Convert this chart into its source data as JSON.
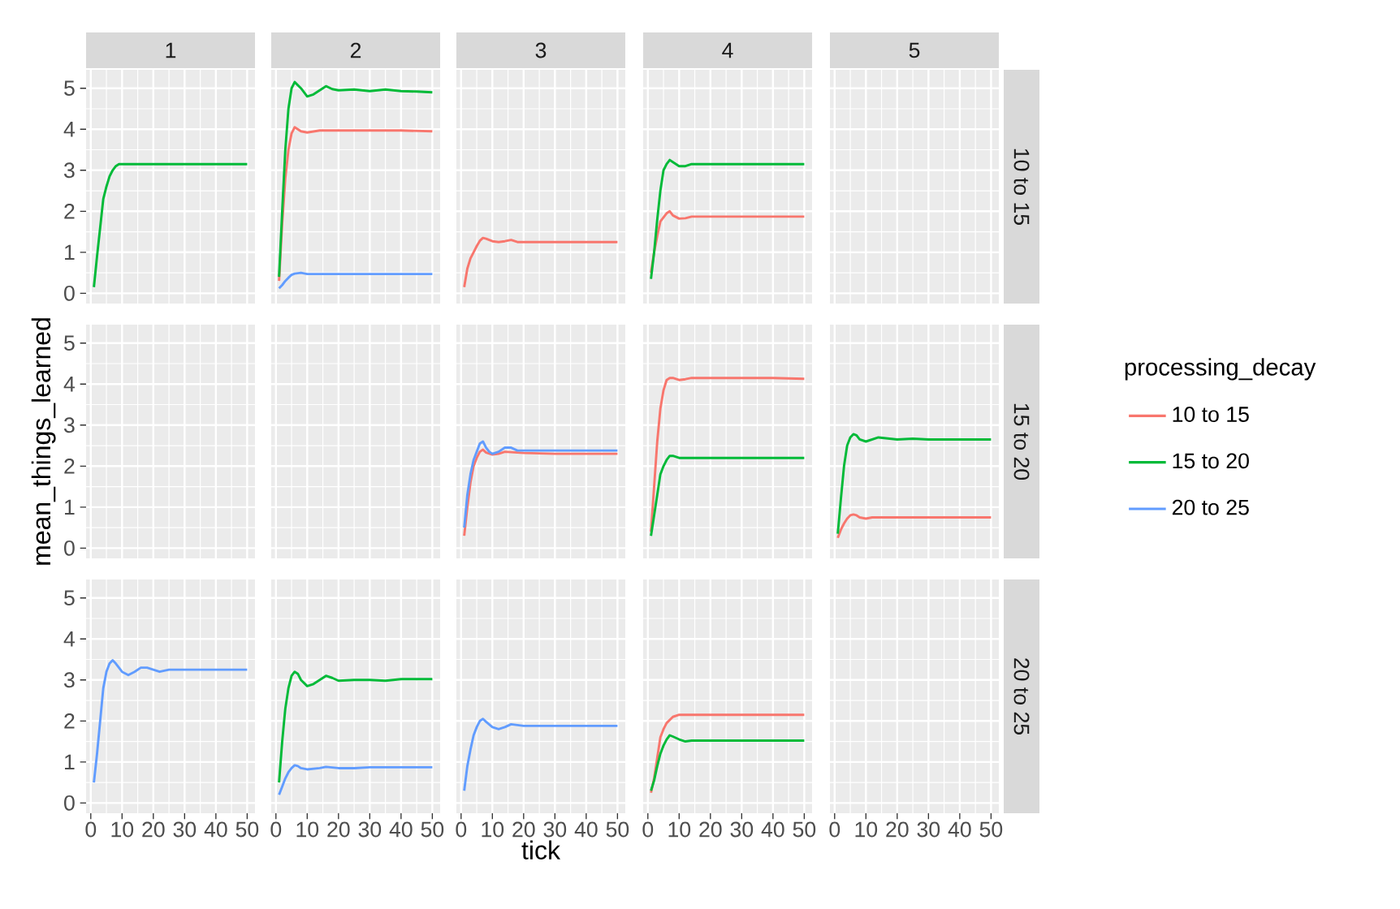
{
  "chart_data": [
    {
      "type": "line",
      "title": "1",
      "xlim": [
        -1.5,
        52.5
      ],
      "ylim": [
        -0.25,
        5.45
      ],
      "xticks": [
        0,
        10,
        20,
        30,
        40,
        50
      ],
      "yticks": [
        0,
        1,
        2,
        3,
        4,
        5
      ],
      "grid": true,
      "tick_labels": "y",
      "series": [
        {
          "color": "#00ba38",
          "x": [
            1,
            2,
            3,
            4,
            5,
            6,
            7,
            8,
            9,
            10,
            20,
            30,
            40,
            50
          ],
          "values": [
            0.15,
            0.9,
            1.6,
            2.3,
            2.6,
            2.85,
            3.0,
            3.1,
            3.15,
            3.15,
            3.15,
            3.15,
            3.15,
            3.15
          ]
        }
      ]
    },
    {
      "type": "line",
      "title": "2",
      "xlim": [
        -1.5,
        52.5
      ],
      "ylim": [
        -0.25,
        5.45
      ],
      "xticks": [
        0,
        10,
        20,
        30,
        40,
        50
      ],
      "yticks": [
        0,
        1,
        2,
        3,
        4,
        5
      ],
      "grid": true,
      "tick_labels": false,
      "legend": "right",
      "legend_title": "processing_decay",
      "series": [
        {
          "name": "10 to 15",
          "color": "#f8766d",
          "x": [
            1,
            2,
            3,
            4,
            5,
            6,
            8,
            10,
            14,
            20,
            30,
            40,
            50
          ],
          "values": [
            0.3,
            1.7,
            2.8,
            3.5,
            3.9,
            4.05,
            3.95,
            3.92,
            3.97,
            3.97,
            3.97,
            3.97,
            3.95
          ]
        },
        {
          "name": "15 to 20",
          "color": "#00ba38",
          "x": [
            1,
            2,
            3,
            4,
            5,
            6,
            8,
            10,
            12,
            14,
            16,
            18,
            20,
            25,
            30,
            35,
            40,
            45,
            50
          ],
          "values": [
            0.4,
            2.0,
            3.5,
            4.5,
            5.0,
            5.15,
            5.0,
            4.8,
            4.85,
            4.95,
            5.05,
            4.98,
            4.95,
            4.97,
            4.93,
            4.97,
            4.93,
            4.92,
            4.9
          ]
        },
        {
          "name": "20 to 25",
          "color": "#619cff",
          "x": [
            1,
            2,
            3,
            4,
            5,
            6,
            8,
            10,
            20,
            50
          ],
          "values": [
            0.12,
            0.2,
            0.3,
            0.38,
            0.45,
            0.48,
            0.5,
            0.47,
            0.47,
            0.47
          ]
        }
      ]
    },
    {
      "type": "line",
      "title": "3",
      "xlim": [
        -1.5,
        52.5
      ],
      "ylim": [
        -0.25,
        5.45
      ],
      "xticks": [
        0,
        10,
        20,
        30,
        40,
        50
      ],
      "yticks": [
        0,
        1,
        2,
        3,
        4,
        5
      ],
      "grid": true,
      "tick_labels": false,
      "series": [
        {
          "color": "#f8766d",
          "x": [
            1,
            2,
            3,
            4,
            5,
            6,
            7,
            8,
            10,
            12,
            14,
            16,
            18,
            20,
            30,
            40,
            50
          ],
          "values": [
            0.15,
            0.6,
            0.85,
            1.0,
            1.15,
            1.28,
            1.35,
            1.33,
            1.27,
            1.25,
            1.27,
            1.3,
            1.25,
            1.25,
            1.25,
            1.25,
            1.25
          ]
        }
      ]
    },
    {
      "type": "line",
      "title": "4",
      "xlim": [
        -1.5,
        52.5
      ],
      "ylim": [
        -0.25,
        5.45
      ],
      "xticks": [
        0,
        10,
        20,
        30,
        40,
        50
      ],
      "yticks": [
        0,
        1,
        2,
        3,
        4,
        5
      ],
      "grid": true,
      "tick_labels": false,
      "series": [
        {
          "color": "#f8766d",
          "x": [
            1,
            2,
            3,
            4,
            5,
            6,
            7,
            8,
            10,
            12,
            14,
            20,
            30,
            40,
            50
          ],
          "values": [
            0.5,
            1.0,
            1.4,
            1.75,
            1.85,
            1.95,
            2.0,
            1.9,
            1.82,
            1.83,
            1.87,
            1.87,
            1.87,
            1.87,
            1.87
          ]
        },
        {
          "color": "#00ba38",
          "x": [
            1,
            2,
            3,
            4,
            5,
            6,
            7,
            8,
            10,
            12,
            14,
            20,
            30,
            40,
            50
          ],
          "values": [
            0.35,
            1.0,
            1.8,
            2.5,
            3.0,
            3.15,
            3.25,
            3.2,
            3.1,
            3.1,
            3.15,
            3.15,
            3.15,
            3.15,
            3.15
          ]
        }
      ]
    },
    {
      "type": "other",
      "title": "5",
      "y2label": "10 to 15"
    },
    {
      "type": "line",
      "ylabel": "mean_things_learned",
      "xlim": [
        -1.5,
        52.5
      ],
      "ylim": [
        -0.25,
        5.45
      ],
      "xticks": [
        0,
        10,
        20,
        30,
        40,
        50
      ],
      "yticks": [
        0,
        1,
        2,
        3,
        4,
        5
      ],
      "grid": true,
      "tick_labels": "y"
    },
    {
      "type": "other"
    },
    {
      "type": "line",
      "xlim": [
        -1.5,
        52.5
      ],
      "ylim": [
        -0.25,
        5.45
      ],
      "xticks": [
        0,
        10,
        20,
        30,
        40,
        50
      ],
      "yticks": [
        0,
        1,
        2,
        3,
        4,
        5
      ],
      "grid": true,
      "tick_labels": false,
      "series": [
        {
          "color": "#f8766d",
          "x": [
            1,
            2,
            3,
            4,
            5,
            6,
            7,
            8,
            10,
            12,
            14,
            20,
            30,
            40,
            50
          ],
          "values": [
            0.3,
            1.0,
            1.6,
            2.0,
            2.2,
            2.35,
            2.4,
            2.33,
            2.28,
            2.3,
            2.35,
            2.32,
            2.3,
            2.3,
            2.3
          ]
        },
        {
          "color": "#619cff",
          "x": [
            1,
            2,
            3,
            4,
            5,
            6,
            7,
            8,
            9,
            10,
            12,
            14,
            16,
            18,
            20,
            30,
            40,
            50
          ],
          "values": [
            0.5,
            1.3,
            1.8,
            2.15,
            2.35,
            2.55,
            2.6,
            2.45,
            2.35,
            2.3,
            2.35,
            2.45,
            2.45,
            2.38,
            2.38,
            2.38,
            2.38,
            2.38
          ]
        }
      ]
    },
    {
      "type": "line",
      "xlim": [
        -1.5,
        52.5
      ],
      "ylim": [
        -0.25,
        5.45
      ],
      "xticks": [
        0,
        10,
        20,
        30,
        40,
        50
      ],
      "yticks": [
        0,
        1,
        2,
        3,
        4,
        5
      ],
      "grid": true,
      "tick_labels": false,
      "series": [
        {
          "color": "#f8766d",
          "x": [
            1,
            2,
            3,
            4,
            5,
            6,
            7,
            8,
            10,
            12,
            14,
            20,
            30,
            40,
            50
          ],
          "values": [
            0.4,
            1.5,
            2.6,
            3.4,
            3.85,
            4.1,
            4.15,
            4.15,
            4.1,
            4.12,
            4.15,
            4.15,
            4.15,
            4.15,
            4.13
          ]
        },
        {
          "color": "#00ba38",
          "x": [
            1,
            2,
            3,
            4,
            5,
            6,
            7,
            8,
            10,
            20,
            30,
            40,
            50
          ],
          "values": [
            0.3,
            0.8,
            1.3,
            1.8,
            2.0,
            2.15,
            2.25,
            2.25,
            2.2,
            2.2,
            2.2,
            2.2,
            2.2
          ]
        }
      ]
    },
    {
      "type": "line",
      "y2label": "15 to 20",
      "xlim": [
        -1.5,
        52.5
      ],
      "ylim": [
        -0.25,
        5.45
      ],
      "xticks": [
        0,
        10,
        20,
        30,
        40,
        50
      ],
      "yticks": [
        0,
        1,
        2,
        3,
        4,
        5
      ],
      "grid": true,
      "tick_labels": false,
      "series": [
        {
          "color": "#f8766d",
          "x": [
            1,
            2,
            3,
            4,
            5,
            6,
            7,
            8,
            10,
            12,
            14,
            20,
            30,
            50
          ],
          "values": [
            0.25,
            0.45,
            0.6,
            0.72,
            0.8,
            0.82,
            0.8,
            0.75,
            0.72,
            0.75,
            0.75,
            0.75,
            0.75,
            0.75
          ]
        },
        {
          "color": "#00ba38",
          "x": [
            1,
            2,
            3,
            4,
            5,
            6,
            7,
            8,
            10,
            12,
            14,
            20,
            25,
            30,
            40,
            50
          ],
          "values": [
            0.35,
            1.2,
            2.0,
            2.5,
            2.7,
            2.78,
            2.75,
            2.65,
            2.6,
            2.65,
            2.7,
            2.65,
            2.67,
            2.65,
            2.65,
            2.65
          ]
        }
      ]
    },
    {
      "type": "line",
      "xlim": [
        -1.5,
        52.5
      ],
      "ylim": [
        -0.25,
        5.45
      ],
      "xticks": [
        0,
        10,
        20,
        30,
        40,
        50
      ],
      "yticks": [
        0,
        1,
        2,
        3,
        4,
        5
      ],
      "grid": true,
      "series": [
        {
          "color": "#619cff",
          "x": [
            1,
            2,
            3,
            4,
            5,
            6,
            7,
            8,
            10,
            12,
            14,
            16,
            18,
            20,
            22,
            25,
            30,
            40,
            50
          ],
          "values": [
            0.5,
            1.2,
            2.0,
            2.8,
            3.2,
            3.4,
            3.48,
            3.4,
            3.2,
            3.12,
            3.2,
            3.3,
            3.3,
            3.25,
            3.2,
            3.25,
            3.25,
            3.25,
            3.25
          ]
        }
      ]
    },
    {
      "type": "line",
      "xlim": [
        -1.5,
        52.5
      ],
      "ylim": [
        -0.25,
        5.45
      ],
      "xticks": [
        0,
        10,
        20,
        30,
        40,
        50
      ],
      "yticks": [
        0,
        1,
        2,
        3,
        4,
        5
      ],
      "grid": true,
      "tick_labels": "x",
      "series": [
        {
          "color": "#00ba38",
          "x": [
            1,
            2,
            3,
            4,
            5,
            6,
            7,
            8,
            10,
            12,
            14,
            16,
            18,
            20,
            25,
            30,
            35,
            40,
            50
          ],
          "values": [
            0.5,
            1.5,
            2.3,
            2.8,
            3.1,
            3.2,
            3.15,
            3.0,
            2.85,
            2.9,
            3.0,
            3.1,
            3.05,
            2.98,
            3.0,
            3.0,
            2.98,
            3.02,
            3.02
          ]
        },
        {
          "color": "#619cff",
          "x": [
            1,
            2,
            3,
            4,
            5,
            6,
            7,
            8,
            10,
            14,
            16,
            20,
            25,
            30,
            40,
            50
          ],
          "values": [
            0.2,
            0.4,
            0.6,
            0.75,
            0.85,
            0.92,
            0.9,
            0.85,
            0.82,
            0.85,
            0.88,
            0.85,
            0.85,
            0.87,
            0.87,
            0.87
          ]
        }
      ]
    },
    {
      "type": "line",
      "xlabel": "tick",
      "xlim": [
        -1.5,
        52.5
      ],
      "ylim": [
        -0.25,
        5.45
      ],
      "xticks": [
        0,
        10,
        20,
        30,
        40,
        50
      ],
      "yticks": [
        0,
        1,
        2,
        3,
        4,
        5
      ],
      "grid": true,
      "tick_labels": "x",
      "series": [
        {
          "color": "#619cff",
          "x": [
            1,
            2,
            3,
            4,
            5,
            6,
            7,
            8,
            10,
            12,
            14,
            16,
            18,
            20,
            30,
            40,
            50
          ],
          "values": [
            0.3,
            0.9,
            1.3,
            1.65,
            1.85,
            2.0,
            2.05,
            1.98,
            1.85,
            1.8,
            1.85,
            1.92,
            1.9,
            1.88,
            1.88,
            1.88,
            1.88
          ]
        }
      ]
    },
    {
      "type": "line",
      "xlim": [
        -1.5,
        52.5
      ],
      "ylim": [
        -0.25,
        5.45
      ],
      "xticks": [
        0,
        10,
        20,
        30,
        40,
        50
      ],
      "yticks": [
        0,
        1,
        2,
        3,
        4,
        5
      ],
      "grid": true,
      "tick_labels": "x",
      "series": [
        {
          "color": "#f8766d",
          "x": [
            1,
            2,
            3,
            4,
            5,
            6,
            8,
            10,
            20,
            50
          ],
          "values": [
            0.25,
            0.6,
            1.1,
            1.6,
            1.8,
            1.95,
            2.1,
            2.15,
            2.15,
            2.15
          ]
        },
        {
          "color": "#00ba38",
          "x": [
            1,
            2,
            3,
            4,
            5,
            6,
            7,
            8,
            10,
            12,
            14,
            20,
            50
          ],
          "values": [
            0.3,
            0.55,
            0.9,
            1.2,
            1.4,
            1.55,
            1.65,
            1.62,
            1.55,
            1.5,
            1.52,
            1.52,
            1.52
          ]
        }
      ]
    },
    {
      "type": "line",
      "y2label": "20 to 25",
      "xlim": [
        -1.5,
        52.5
      ],
      "ylim": [
        -0.25,
        5.45
      ],
      "xticks": [
        0,
        10,
        20,
        30,
        40,
        50
      ],
      "yticks": [
        0,
        1,
        2,
        3,
        4,
        5
      ],
      "grid": true,
      "tick_labels": "x"
    }
  ]
}
